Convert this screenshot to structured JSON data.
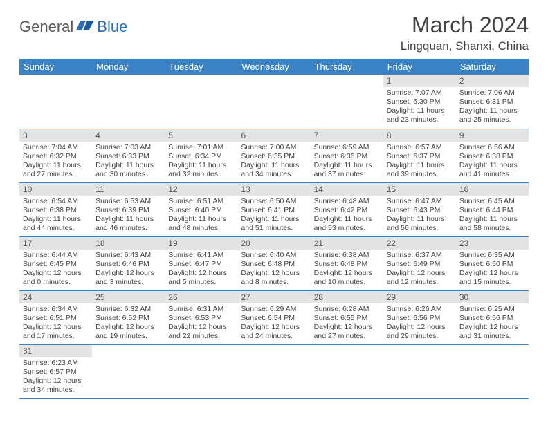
{
  "brand": {
    "part1": "General",
    "part2": "Blue"
  },
  "title": "March 2024",
  "location": "Lingquan, Shanxi, China",
  "colors": {
    "header_bg": "#3b82c4",
    "header_fg": "#ffffff",
    "daynum_bg": "#e4e4e4",
    "rule": "#3b82c4",
    "text": "#444444"
  },
  "weekdays": [
    "Sunday",
    "Monday",
    "Tuesday",
    "Wednesday",
    "Thursday",
    "Friday",
    "Saturday"
  ],
  "first_weekday_index": 5,
  "days": [
    {
      "n": 1,
      "sunrise": "7:07 AM",
      "sunset": "6:30 PM",
      "day_h": 11,
      "day_m": 23
    },
    {
      "n": 2,
      "sunrise": "7:06 AM",
      "sunset": "6:31 PM",
      "day_h": 11,
      "day_m": 25
    },
    {
      "n": 3,
      "sunrise": "7:04 AM",
      "sunset": "6:32 PM",
      "day_h": 11,
      "day_m": 27
    },
    {
      "n": 4,
      "sunrise": "7:03 AM",
      "sunset": "6:33 PM",
      "day_h": 11,
      "day_m": 30
    },
    {
      "n": 5,
      "sunrise": "7:01 AM",
      "sunset": "6:34 PM",
      "day_h": 11,
      "day_m": 32
    },
    {
      "n": 6,
      "sunrise": "7:00 AM",
      "sunset": "6:35 PM",
      "day_h": 11,
      "day_m": 34
    },
    {
      "n": 7,
      "sunrise": "6:59 AM",
      "sunset": "6:36 PM",
      "day_h": 11,
      "day_m": 37
    },
    {
      "n": 8,
      "sunrise": "6:57 AM",
      "sunset": "6:37 PM",
      "day_h": 11,
      "day_m": 39
    },
    {
      "n": 9,
      "sunrise": "6:56 AM",
      "sunset": "6:38 PM",
      "day_h": 11,
      "day_m": 41
    },
    {
      "n": 10,
      "sunrise": "6:54 AM",
      "sunset": "6:38 PM",
      "day_h": 11,
      "day_m": 44
    },
    {
      "n": 11,
      "sunrise": "6:53 AM",
      "sunset": "6:39 PM",
      "day_h": 11,
      "day_m": 46
    },
    {
      "n": 12,
      "sunrise": "6:51 AM",
      "sunset": "6:40 PM",
      "day_h": 11,
      "day_m": 48
    },
    {
      "n": 13,
      "sunrise": "6:50 AM",
      "sunset": "6:41 PM",
      "day_h": 11,
      "day_m": 51
    },
    {
      "n": 14,
      "sunrise": "6:48 AM",
      "sunset": "6:42 PM",
      "day_h": 11,
      "day_m": 53
    },
    {
      "n": 15,
      "sunrise": "6:47 AM",
      "sunset": "6:43 PM",
      "day_h": 11,
      "day_m": 56
    },
    {
      "n": 16,
      "sunrise": "6:45 AM",
      "sunset": "6:44 PM",
      "day_h": 11,
      "day_m": 58
    },
    {
      "n": 17,
      "sunrise": "6:44 AM",
      "sunset": "6:45 PM",
      "day_h": 12,
      "day_m": 0
    },
    {
      "n": 18,
      "sunrise": "6:43 AM",
      "sunset": "6:46 PM",
      "day_h": 12,
      "day_m": 3
    },
    {
      "n": 19,
      "sunrise": "6:41 AM",
      "sunset": "6:47 PM",
      "day_h": 12,
      "day_m": 5
    },
    {
      "n": 20,
      "sunrise": "6:40 AM",
      "sunset": "6:48 PM",
      "day_h": 12,
      "day_m": 8
    },
    {
      "n": 21,
      "sunrise": "6:38 AM",
      "sunset": "6:48 PM",
      "day_h": 12,
      "day_m": 10
    },
    {
      "n": 22,
      "sunrise": "6:37 AM",
      "sunset": "6:49 PM",
      "day_h": 12,
      "day_m": 12
    },
    {
      "n": 23,
      "sunrise": "6:35 AM",
      "sunset": "6:50 PM",
      "day_h": 12,
      "day_m": 15
    },
    {
      "n": 24,
      "sunrise": "6:34 AM",
      "sunset": "6:51 PM",
      "day_h": 12,
      "day_m": 17
    },
    {
      "n": 25,
      "sunrise": "6:32 AM",
      "sunset": "6:52 PM",
      "day_h": 12,
      "day_m": 19
    },
    {
      "n": 26,
      "sunrise": "6:31 AM",
      "sunset": "6:53 PM",
      "day_h": 12,
      "day_m": 22
    },
    {
      "n": 27,
      "sunrise": "6:29 AM",
      "sunset": "6:54 PM",
      "day_h": 12,
      "day_m": 24
    },
    {
      "n": 28,
      "sunrise": "6:28 AM",
      "sunset": "6:55 PM",
      "day_h": 12,
      "day_m": 27
    },
    {
      "n": 29,
      "sunrise": "6:26 AM",
      "sunset": "6:56 PM",
      "day_h": 12,
      "day_m": 29
    },
    {
      "n": 30,
      "sunrise": "6:25 AM",
      "sunset": "6:56 PM",
      "day_h": 12,
      "day_m": 31
    },
    {
      "n": 31,
      "sunrise": "6:23 AM",
      "sunset": "6:57 PM",
      "day_h": 12,
      "day_m": 34
    }
  ],
  "labels": {
    "sunrise": "Sunrise:",
    "sunset": "Sunset:",
    "daylight": "Daylight:",
    "hours": "hours",
    "and": "and",
    "minutes": "minutes."
  }
}
